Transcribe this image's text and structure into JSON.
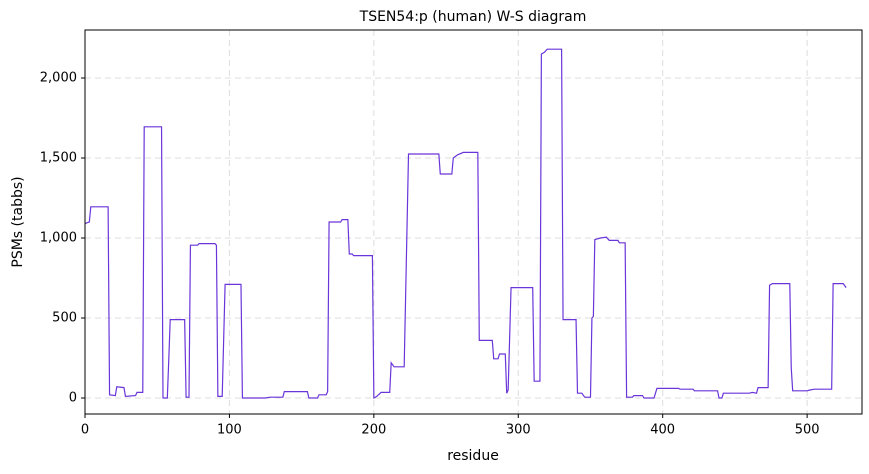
{
  "chart_data": {
    "type": "line",
    "title": "TSEN54:p (human) W-S diagram",
    "x_label": "residue",
    "y_label": "PSMs (tabbs)",
    "x": [
      0,
      3,
      4,
      16,
      17,
      21,
      22,
      27,
      28,
      35,
      36,
      40,
      41,
      53,
      54,
      57,
      58,
      59,
      69,
      70,
      72,
      73,
      78,
      79,
      90,
      91,
      92,
      95,
      97,
      108,
      109,
      125,
      128,
      137,
      138,
      154,
      155,
      161,
      162,
      167,
      168,
      169,
      177,
      178,
      182,
      183,
      185,
      186,
      199,
      200,
      202,
      205,
      211,
      212,
      214,
      221,
      224,
      245,
      246,
      254,
      255,
      258,
      262,
      272,
      273,
      282,
      283,
      286,
      287,
      291,
      292,
      293,
      295,
      310,
      311,
      315,
      316,
      318,
      320,
      330,
      331,
      340,
      341,
      344,
      346,
      350,
      351,
      352,
      353,
      357,
      361,
      363,
      369,
      370,
      374,
      375,
      379,
      380,
      386,
      387,
      394,
      396,
      411,
      412,
      421,
      422,
      438,
      439,
      441,
      442,
      460,
      462,
      465,
      466,
      473,
      474,
      476,
      488,
      489,
      490,
      500,
      502,
      505,
      517,
      518,
      525,
      527
    ],
    "series": [
      {
        "name": "PSMs",
        "color": "#6a35d9",
        "values": [
          1090,
          1100,
          1195,
          1195,
          20,
          15,
          70,
          65,
          10,
          15,
          35,
          35,
          1695,
          1695,
          0,
          0,
          240,
          490,
          490,
          5,
          5,
          955,
          955,
          965,
          965,
          955,
          10,
          10,
          710,
          710,
          0,
          0,
          5,
          5,
          40,
          40,
          0,
          0,
          20,
          20,
          40,
          1100,
          1100,
          1115,
          1115,
          900,
          900,
          890,
          890,
          0,
          10,
          35,
          35,
          220,
          195,
          195,
          1525,
          1525,
          1400,
          1400,
          1500,
          1520,
          1535,
          1535,
          360,
          360,
          245,
          245,
          275,
          275,
          30,
          50,
          690,
          690,
          105,
          105,
          2150,
          2160,
          2180,
          2180,
          490,
          490,
          30,
          30,
          5,
          5,
          500,
          510,
          990,
          1000,
          1005,
          985,
          985,
          970,
          970,
          5,
          5,
          15,
          15,
          0,
          0,
          60,
          60,
          55,
          55,
          45,
          45,
          0,
          0,
          30,
          30,
          35,
          30,
          65,
          65,
          705,
          715,
          715,
          190,
          45,
          45,
          50,
          55,
          55,
          715,
          715,
          690
        ]
      }
    ],
    "xlim": [
      0,
      538
    ],
    "ylim": [
      -100,
      2300
    ],
    "xticks": [
      0,
      100,
      200,
      300,
      400,
      500
    ],
    "yticks": [
      0,
      500,
      {
        "value": 1000,
        "label": "1,000"
      },
      {
        "value": 1500,
        "label": "1,500"
      },
      {
        "value": 2000,
        "label": "2,000"
      }
    ],
    "grid": true
  }
}
